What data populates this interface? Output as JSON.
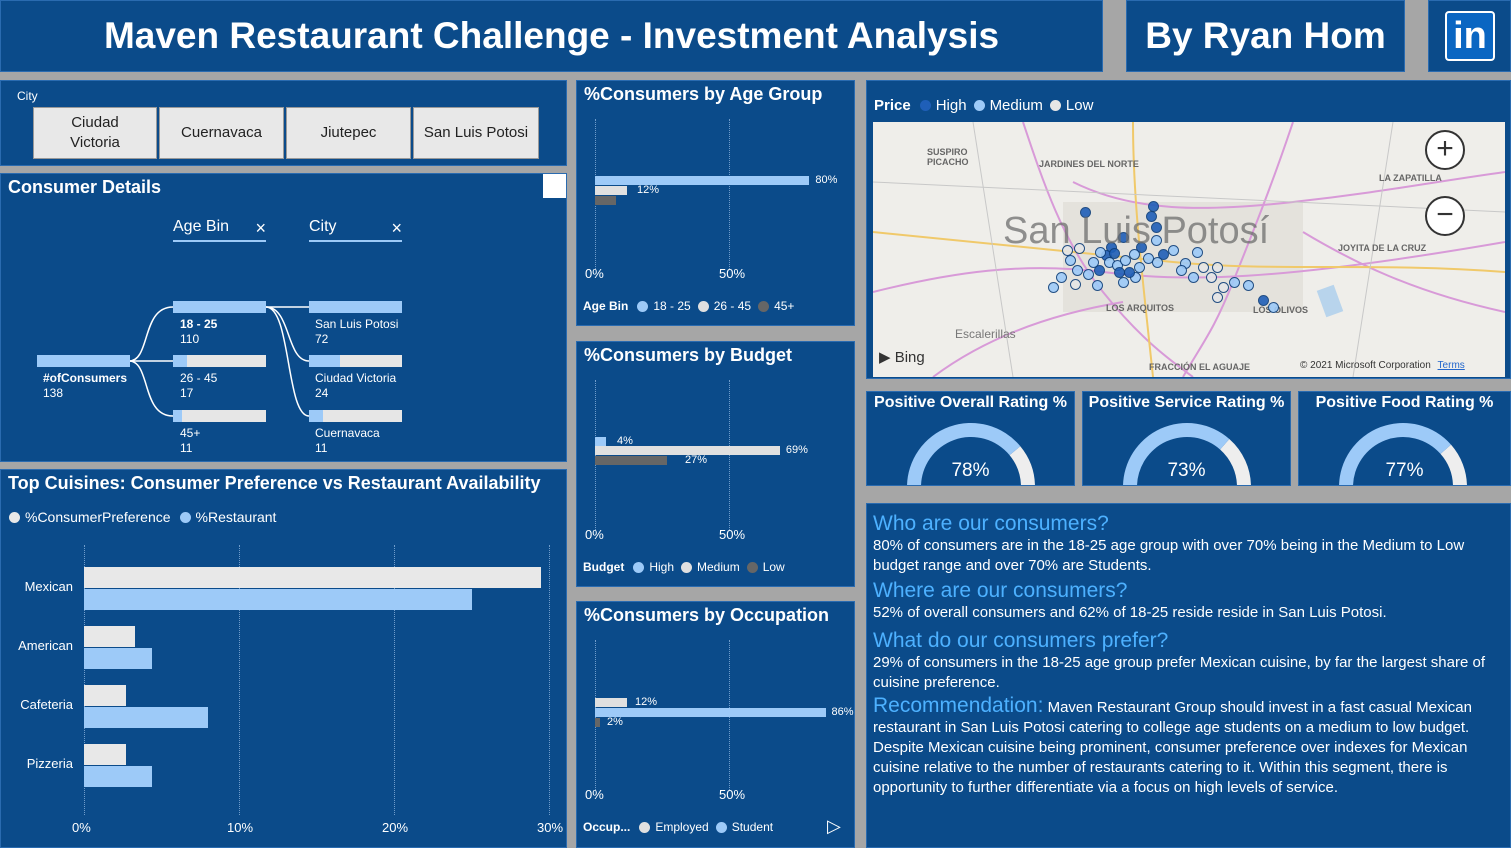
{
  "header": {
    "title": "Maven Restaurant Challenge - Investment Analysis",
    "author": "By Ryan Hom",
    "linkedin_label": "in"
  },
  "city_slicer": {
    "label": "City",
    "options": [
      "Ciudad Victoria",
      "Cuernavaca",
      "Jiutepec",
      "San Luis Potosi"
    ]
  },
  "consumer_details": {
    "title": "Consumer Details",
    "level1_header": "Age Bin",
    "level2_header": "City",
    "close_symbol": "×",
    "root": {
      "label": "#ofConsumers",
      "value": "138"
    },
    "age_bins": [
      {
        "label": "18 - 25",
        "value": "110",
        "fraction": 1.0
      },
      {
        "label": "26 - 45",
        "value": "17",
        "fraction": 0.15
      },
      {
        "label": "45+",
        "value": "11",
        "fraction": 0.1
      }
    ],
    "cities": [
      {
        "label": "San Luis Potosi",
        "value": "72",
        "fraction": 1.0
      },
      {
        "label": "Ciudad Victoria",
        "value": "24",
        "fraction": 0.33
      },
      {
        "label": "Cuernavaca",
        "value": "11",
        "fraction": 0.15
      }
    ]
  },
  "age_chart": {
    "title": "%Consumers by Age Group",
    "ticks": [
      "0%",
      "50%"
    ],
    "legend_title": "Age Bin",
    "legend": [
      {
        "name": "18 - 25",
        "color": "#9dcaf8"
      },
      {
        "name": "26 - 45",
        "color": "#e0e0e0"
      },
      {
        "name": "45+",
        "color": "#666666"
      }
    ],
    "bars": [
      {
        "value": 80,
        "label": "80%",
        "color": "#9dcaf8"
      },
      {
        "value": 12,
        "label": "12%",
        "color": "#e0e0e0"
      },
      {
        "value": 8,
        "label": "",
        "color": "#666666"
      }
    ]
  },
  "budget_chart": {
    "title": "%Consumers by Budget",
    "ticks": [
      "0%",
      "50%"
    ],
    "legend_title": "Budget",
    "legend": [
      {
        "name": "High",
        "color": "#9dcaf8"
      },
      {
        "name": "Medium",
        "color": "#e0e0e0"
      },
      {
        "name": "Low",
        "color": "#666666"
      }
    ],
    "bars": [
      {
        "value": 4,
        "label": "4%",
        "color": "#9dcaf8"
      },
      {
        "value": 69,
        "label": "69%",
        "color": "#e0e0e0"
      },
      {
        "value": 27,
        "label": "27%",
        "color": "#666666"
      }
    ]
  },
  "occupation_chart": {
    "title": "%Consumers by Occupation",
    "ticks": [
      "0%",
      "50%"
    ],
    "legend_title": "Occup...",
    "legend": [
      {
        "name": "Employed",
        "color": "#e0e0e0"
      },
      {
        "name": "Student",
        "color": "#9dcaf8"
      }
    ],
    "bars": [
      {
        "value": 12,
        "label": "12%",
        "color": "#e0e0e0"
      },
      {
        "value": 86,
        "label": "86%",
        "color": "#9dcaf8"
      },
      {
        "value": 2,
        "label": "2%",
        "color": "#666666"
      }
    ],
    "next_icon": "▷"
  },
  "cuisine_chart": {
    "title": "Top Cuisines: Consumer Preference vs Restaurant Availability",
    "legend": [
      {
        "name": "%ConsumerPreference",
        "color": "#e8e8e8"
      },
      {
        "name": "%Restaurant",
        "color": "#9dcaf8"
      }
    ],
    "ticks": [
      "0%",
      "10%",
      "20%",
      "30%"
    ]
  },
  "chart_data": [
    {
      "type": "bar",
      "title": "Top Cuisines: Consumer Preference vs Restaurant Availability",
      "categories": [
        "Mexican",
        "American",
        "Cafeteria",
        "Pizzeria"
      ],
      "series": [
        {
          "name": "%ConsumerPreference",
          "values": [
            29.5,
            3.3,
            2.7,
            2.7
          ]
        },
        {
          "name": "%Restaurant",
          "values": [
            25.0,
            4.4,
            8.0,
            4.4
          ]
        }
      ],
      "xlim": [
        0,
        30
      ]
    },
    {
      "type": "bar",
      "title": "%Consumers by Age Group",
      "categories": [
        "18 - 25",
        "26 - 45",
        "45+"
      ],
      "values": [
        80,
        12,
        8
      ]
    },
    {
      "type": "bar",
      "title": "%Consumers by Budget",
      "categories": [
        "High",
        "Medium",
        "Low"
      ],
      "values": [
        4,
        69,
        27
      ]
    },
    {
      "type": "bar",
      "title": "%Consumers by Occupation",
      "categories": [
        "Employed",
        "Student",
        ""
      ],
      "values": [
        12,
        86,
        2
      ]
    }
  ],
  "map": {
    "legend_title": "Price",
    "legend": [
      {
        "name": "High",
        "color": "#1f5fb8"
      },
      {
        "name": "Medium",
        "color": "#9dcaf8"
      },
      {
        "name": "Low",
        "color": "#e6e6e6"
      }
    ],
    "city_label": "San Luis Potosí",
    "places": [
      "SUSPIRO PICACHO",
      "JARDINES DEL NORTE",
      "LA ZAPATILLA",
      "JOYITA DE LA CRUZ",
      "LOS ARQUITOS",
      "Escalerillas",
      "FRACCIÓN EL AGUAJE",
      "LOS OLIVOS"
    ],
    "bing_label": "Bing",
    "copyright": "© 2021 Microsoft Corporation",
    "terms": "Terms",
    "zoom_in": "+",
    "zoom_out": "−"
  },
  "gauges": [
    {
      "title": "Positive Overall Rating %",
      "value": "78%",
      "fraction": 0.78
    },
    {
      "title": "Positive Service Rating %",
      "value": "73%",
      "fraction": 0.73
    },
    {
      "title": "Positive Food Rating %",
      "value": "77%",
      "fraction": 0.77
    }
  ],
  "insights": {
    "q1": "Who are our consumers?",
    "a1": "80% of consumers are in the 18-25 age group with over 70% being in the Medium to Low budget range and over 70% are Students.",
    "q2": "Where are our consumers?",
    "a2": "52% of overall consumers and 62% of 18-25 reside reside in San Luis Potosi.",
    "q3": "What do our consumers prefer?",
    "a3": "29% of consumers in the 18-25 age group prefer Mexican cuisine, by far the largest share of cuisine preference.",
    "q4": "Recommendation:",
    "a4": "Maven Restaurant Group should invest in a fast casual Mexican restaurant in San Luis Potosi catering to college age students on a medium to low budget. Despite Mexican cuisine being prominent, consumer preference over indexes for Mexican cuisine relative to the number of restaurants catering to it. Within this segment, there is opportunity to further differentiate via a focus on high levels of service."
  }
}
